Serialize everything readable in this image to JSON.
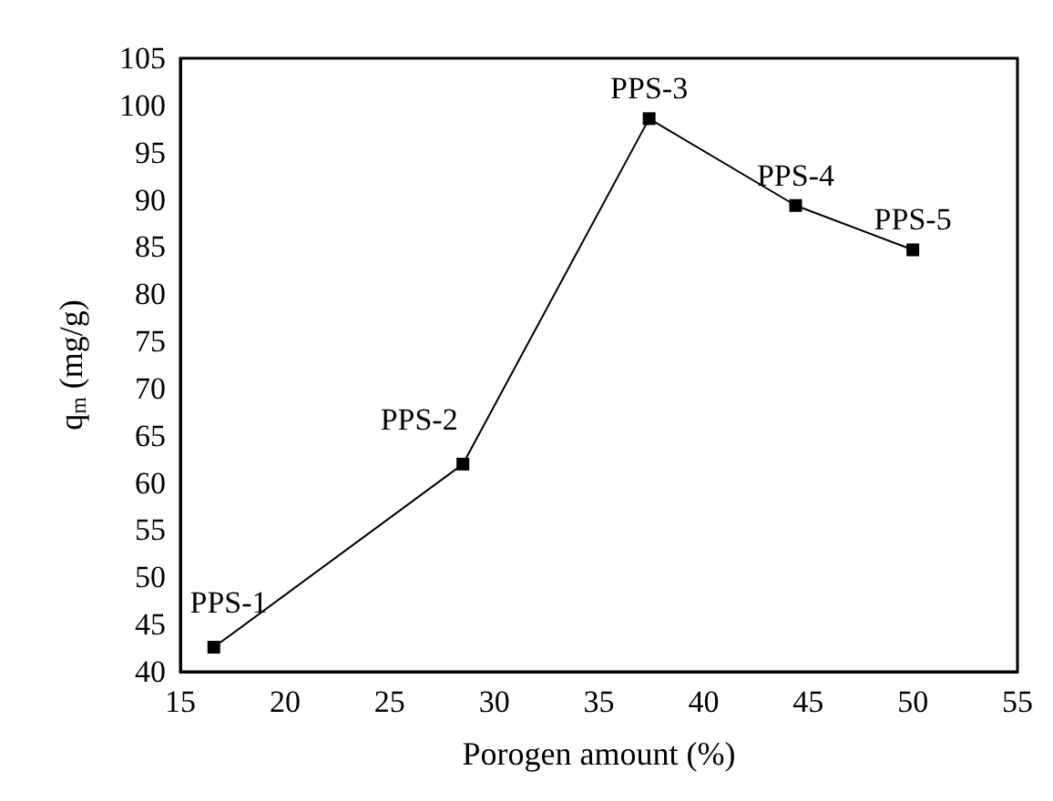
{
  "chart_data": {
    "type": "line",
    "xlabel": "Porogen amount (%)",
    "ylabel": "q$_{m}$ (mg/g)",
    "x": [
      16.6,
      28.5,
      37.4,
      44.4,
      50.0
    ],
    "series": [
      {
        "color": "#000000",
        "values": [
          42.6,
          62.0,
          98.6,
          89.4,
          84.7
        ]
      }
    ],
    "xlim": [
      15,
      55
    ],
    "xticks": [
      15,
      20,
      25,
      30,
      35,
      40,
      45,
      50,
      55
    ],
    "ylim": [
      40,
      105
    ],
    "yticks": [
      40,
      45,
      50,
      55,
      60,
      65,
      70,
      75,
      80,
      85,
      90,
      95,
      100,
      105
    ],
    "marker": "square",
    "line_style": "solid",
    "grid": false,
    "annotations": [
      {
        "text": "PPS-1",
        "x": 16.6,
        "y": 42.6
      },
      {
        "text": "PPS-2",
        "x": 28.5,
        "y": 62.0
      },
      {
        "text": "PPS-3",
        "x": 37.4,
        "y": 98.6
      },
      {
        "text": "PPS-4",
        "x": 44.4,
        "y": 89.4
      },
      {
        "text": "PPS-5",
        "x": 50.0,
        "y": 84.7
      }
    ]
  }
}
